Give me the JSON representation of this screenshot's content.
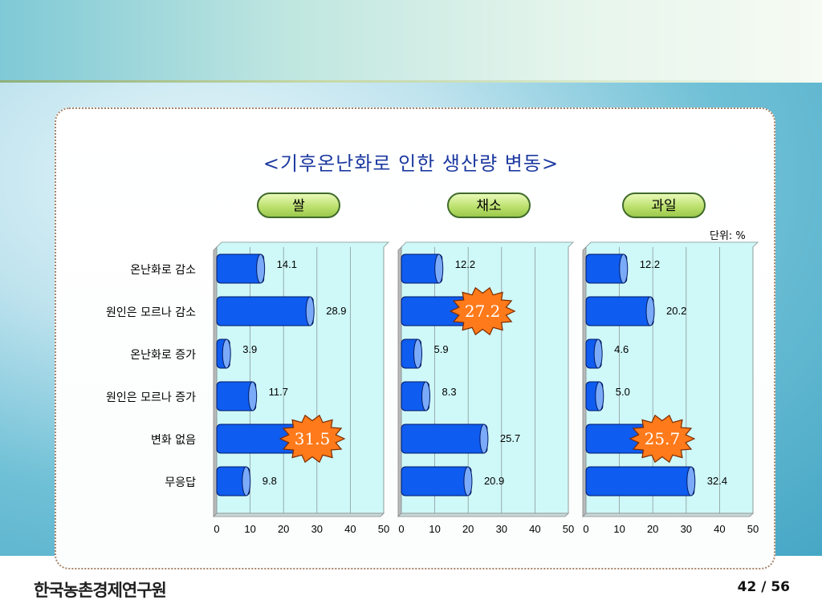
{
  "title": "<기후온난화로 인한 생산량 변동>",
  "unit_label": "단위: %",
  "footer": {
    "logo_text": "한국농촌경제연구원",
    "page_indicator": "42 / 56"
  },
  "colors": {
    "bar": "#0f5cf0",
    "bar_cap": "#7aaaf8",
    "plot_bg": "#cff8f8",
    "burst": "#ff7a1a",
    "burst_text": "#ffffff"
  },
  "chart_data": {
    "type": "bar",
    "orientation": "horizontal",
    "categories": [
      "온난화로 감소",
      "원인은 모르나 감소",
      "온난화로 증가",
      "원인은 모르나 증가",
      "변화 없음",
      "무응답"
    ],
    "xlim": [
      0,
      50
    ],
    "x_ticks": [
      "0",
      "10",
      "20",
      "30",
      "40",
      "50"
    ],
    "grid": true,
    "panels": [
      {
        "name": "쌀",
        "values": [
          14.1,
          28.9,
          3.9,
          11.7,
          31.5,
          9.8
        ],
        "labels": [
          "14.1",
          "28.9",
          "3.9",
          "11.7",
          "31.5",
          "9.8"
        ],
        "highlight": 4
      },
      {
        "name": "채소",
        "values": [
          12.2,
          27.2,
          5.9,
          8.3,
          25.7,
          20.9
        ],
        "labels": [
          "12.2",
          "27.2",
          "5.9",
          "8.3",
          "25.7",
          "20.9"
        ],
        "highlight": 1
      },
      {
        "name": "과일",
        "values": [
          12.2,
          20.2,
          4.6,
          5.0,
          25.7,
          32.4
        ],
        "labels": [
          "12.2",
          "20.2",
          "4.6",
          "5.0",
          "25.7",
          "32.4"
        ],
        "highlight": 4
      }
    ]
  }
}
